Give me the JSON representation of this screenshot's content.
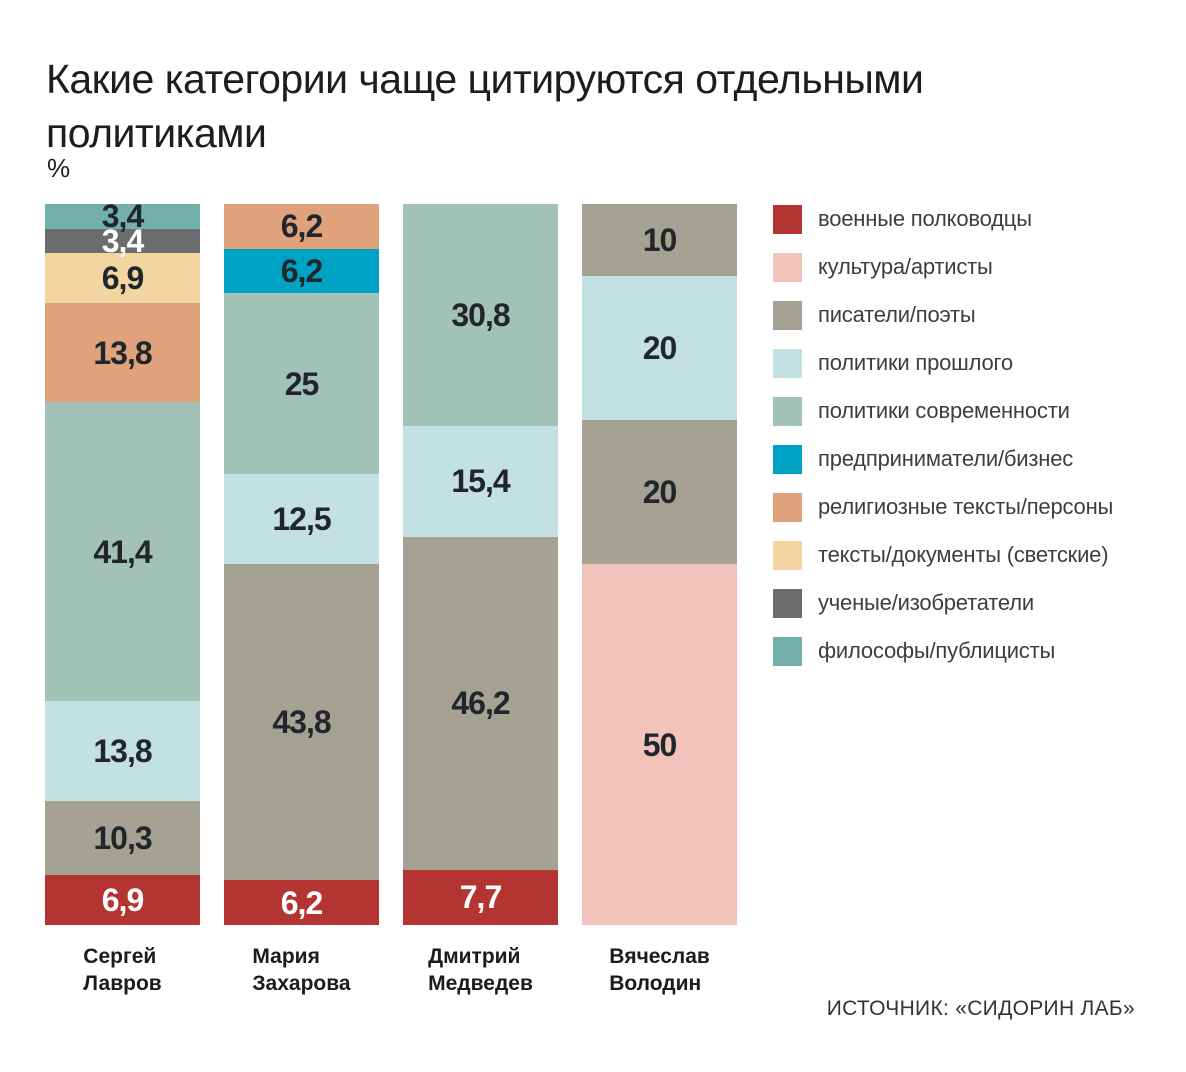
{
  "title_lines": [
    "Какие категории чаще цитируются отдельными",
    "политиками"
  ],
  "unit_label": "%",
  "source": "ИСТОЧНИК: «СИДОРИН ЛАБ»",
  "palette": {
    "red": "#b43431",
    "pink": "#f2c3bb",
    "gray": "#a5a294",
    "lightblue": "#c3e0e2",
    "sage": "#a2c1b7",
    "cyan": "#00a2c3",
    "salmon": "#dfa27c",
    "peach": "#f3d5a2",
    "darkgray": "#6b6c6e",
    "teal": "#74b0ab"
  },
  "legend": [
    {
      "label": "военные полководцы",
      "color_key": "red"
    },
    {
      "label": "культура/артисты",
      "color_key": "pink"
    },
    {
      "label": "писатели/поэты",
      "color_key": "gray"
    },
    {
      "label": "политики прошлого",
      "color_key": "lightblue"
    },
    {
      "label": "политики современности",
      "color_key": "sage"
    },
    {
      "label": "предприниматели/бизнес",
      "color_key": "cyan"
    },
    {
      "label": "религиозные тексты/персоны",
      "color_key": "salmon"
    },
    {
      "label": "тексты/документы (светские)",
      "color_key": "peach"
    },
    {
      "label": "ученые/изобретатели",
      "color_key": "darkgray"
    },
    {
      "label": "философы/публицисты",
      "color_key": "teal"
    }
  ],
  "chart_data": {
    "type": "bar",
    "subtype": "stacked-vertical-100pct",
    "title": "Какие категории чаще цитируются отдельными политиками",
    "unit": "%",
    "value_decimal_separator": ",",
    "legend_position": "right",
    "bars": [
      {
        "name": "Сергей Лавров",
        "name_lines": [
          "Сергей",
          "Лавров"
        ],
        "segments_top_to_bottom": [
          {
            "category": "философы/публицисты",
            "value": 3.4,
            "label": "3,4",
            "color_key": "teal",
            "text": "dark"
          },
          {
            "category": "ученые/изобретатели",
            "value": 3.4,
            "label": "3,4",
            "color_key": "darkgray",
            "text": "light"
          },
          {
            "category": "тексты/документы (светские)",
            "value": 6.9,
            "label": "6,9",
            "color_key": "peach",
            "text": "dark"
          },
          {
            "category": "религиозные тексты/персоны",
            "value": 13.8,
            "label": "13,8",
            "color_key": "salmon",
            "text": "dark"
          },
          {
            "category": "политики современности",
            "value": 41.4,
            "label": "41,4",
            "color_key": "sage",
            "text": "dark"
          },
          {
            "category": "политики прошлого",
            "value": 13.8,
            "label": "13,8",
            "color_key": "lightblue",
            "text": "dark"
          },
          {
            "category": "писатели/поэты",
            "value": 10.3,
            "label": "10,3",
            "color_key": "gray",
            "text": "dark"
          },
          {
            "category": "военные полководцы",
            "value": 6.9,
            "label": "6,9",
            "color_key": "red",
            "text": "light"
          }
        ]
      },
      {
        "name": "Мария Захарова",
        "name_lines": [
          "Мария",
          "Захарова"
        ],
        "segments_top_to_bottom": [
          {
            "category": "религиозные тексты/персоны",
            "value": 6.2,
            "label": "6,2",
            "color_key": "salmon",
            "text": "dark"
          },
          {
            "category": "предприниматели/бизнес",
            "value": 6.2,
            "label": "6,2",
            "color_key": "cyan",
            "text": "dark"
          },
          {
            "category": "политики современности",
            "value": 25,
            "label": "25",
            "color_key": "sage",
            "text": "dark"
          },
          {
            "category": "политики прошлого",
            "value": 12.5,
            "label": "12,5",
            "color_key": "lightblue",
            "text": "dark"
          },
          {
            "category": "писатели/поэты",
            "value": 43.8,
            "label": "43,8",
            "color_key": "gray",
            "text": "dark"
          },
          {
            "category": "военные полководцы",
            "value": 6.2,
            "label": "6,2",
            "color_key": "red",
            "text": "light"
          }
        ]
      },
      {
        "name": "Дмитрий Медведев",
        "name_lines": [
          "Дмитрий",
          "Медведев"
        ],
        "segments_top_to_bottom": [
          {
            "category": "политики современности",
            "value": 30.8,
            "label": "30,8",
            "color_key": "sage",
            "text": "dark"
          },
          {
            "category": "политики прошлого",
            "value": 15.4,
            "label": "15,4",
            "color_key": "lightblue",
            "text": "dark"
          },
          {
            "category": "писатели/поэты",
            "value": 46.2,
            "label": "46,2",
            "color_key": "gray",
            "text": "dark"
          },
          {
            "category": "военные полководцы",
            "value": 7.7,
            "label": "7,7",
            "color_key": "red",
            "text": "light"
          }
        ]
      },
      {
        "name": "Вячеслав Володин",
        "name_lines": [
          "Вячеслав",
          "Володин"
        ],
        "segments_top_to_bottom": [
          {
            "category": "писатели/поэты",
            "value": 10,
            "label": "10",
            "color_key": "gray",
            "text": "dark"
          },
          {
            "category": "политики прошлого",
            "value": 20,
            "label": "20",
            "color_key": "lightblue",
            "text": "dark"
          },
          {
            "category": "писатели/поэты",
            "value": 20,
            "label": "20",
            "color_key": "gray",
            "text": "dark"
          },
          {
            "category": "культура/артисты",
            "value": 50,
            "label": "50",
            "color_key": "pink",
            "text": "dark"
          }
        ]
      }
    ]
  }
}
